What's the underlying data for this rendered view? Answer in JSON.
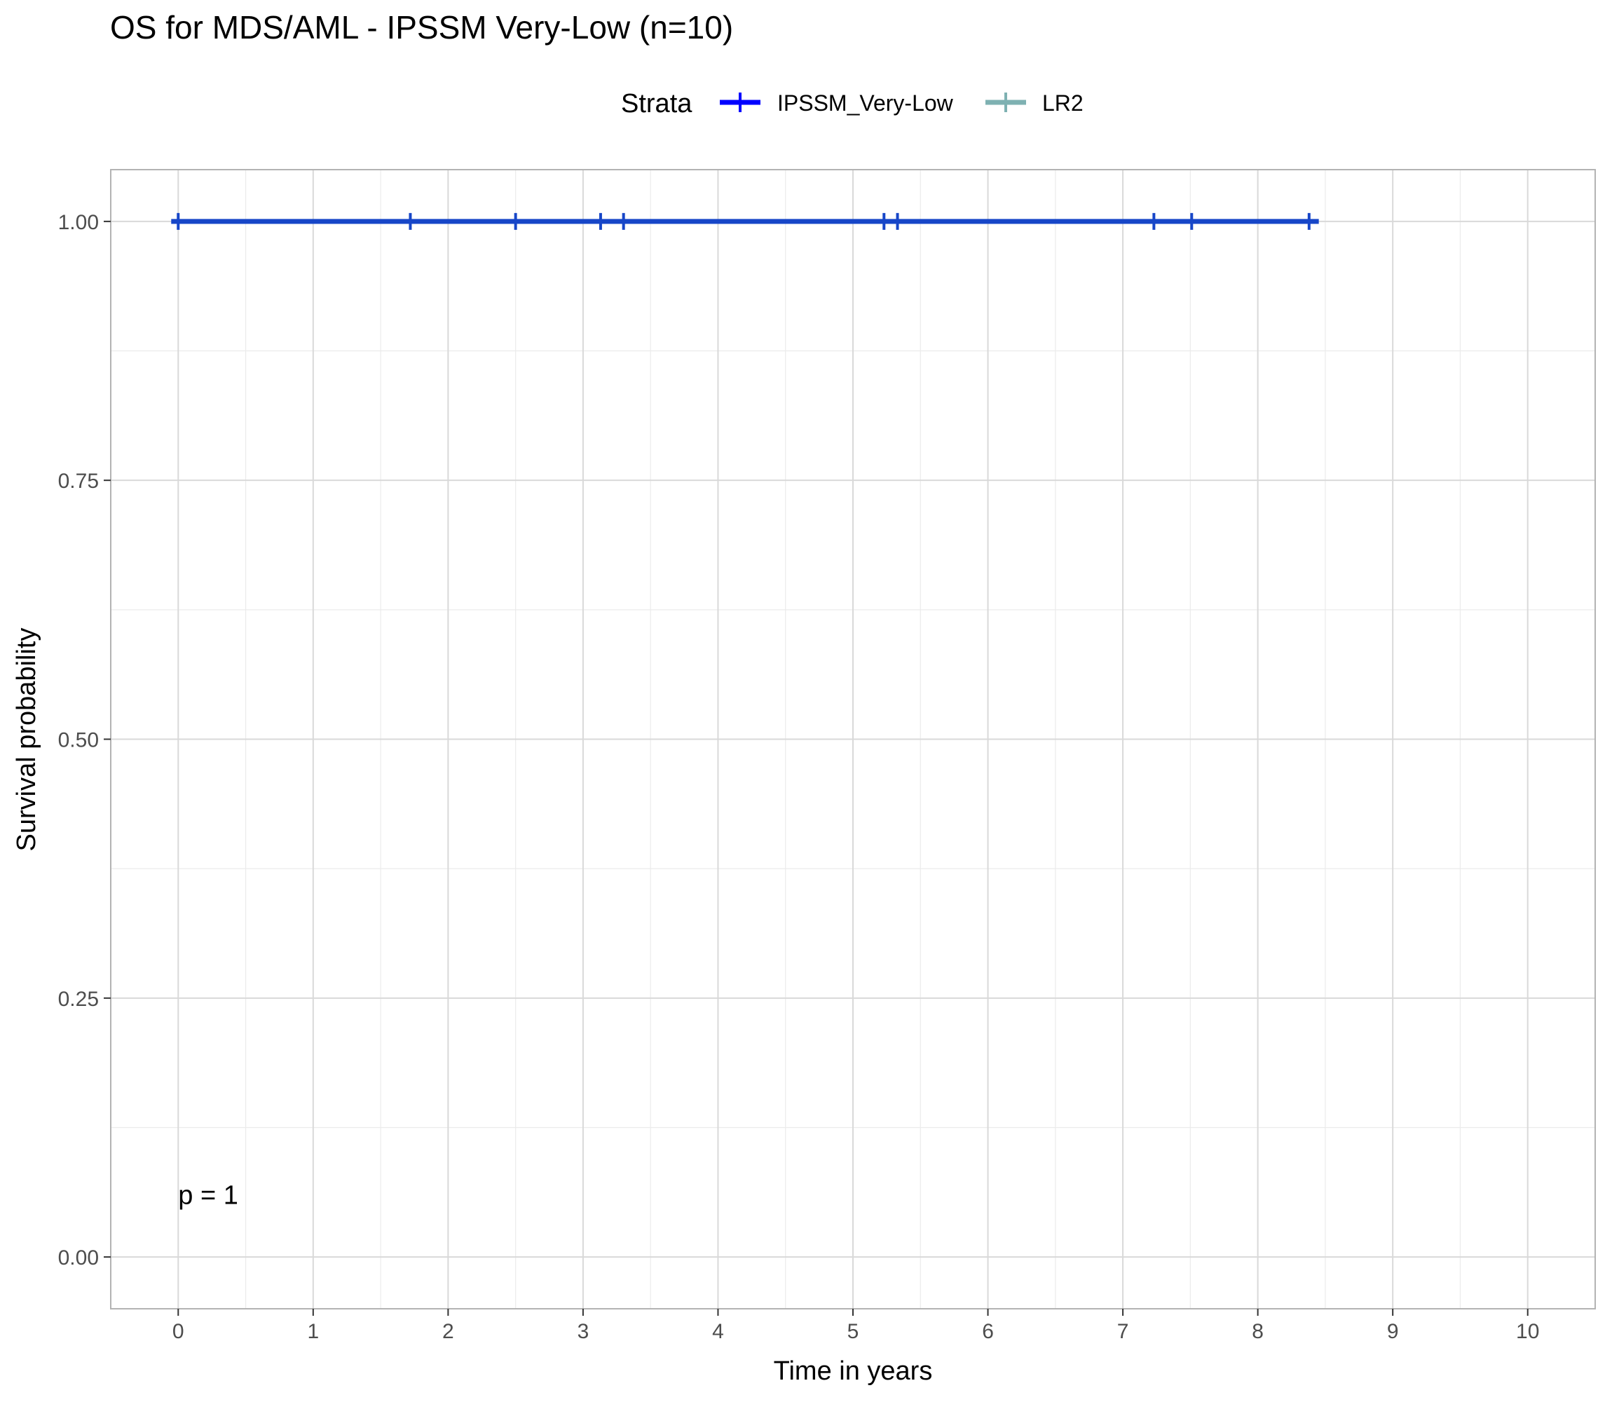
{
  "chart_data": {
    "type": "line",
    "title": "OS for MDS/AML - IPSSM Very-Low (n=10)",
    "xlabel": "Time in years",
    "ylabel": "Survival probability",
    "xlim": [
      -0.5,
      10.5
    ],
    "ylim": [
      -0.05,
      1.05
    ],
    "x_ticks": [
      0,
      1,
      2,
      3,
      4,
      5,
      6,
      7,
      8,
      9,
      10
    ],
    "y_ticks": [
      0.0,
      0.25,
      0.5,
      0.75,
      1.0
    ],
    "y_tick_labels": [
      "0.00",
      "0.25",
      "0.50",
      "0.75",
      "1.00"
    ],
    "grid": true,
    "legend": {
      "title": "Strata",
      "position": "top",
      "entries": [
        {
          "name": "IPSSM_Very-Low",
          "color": "#0000ff"
        },
        {
          "name": "LR2",
          "color": "#5f9ea0"
        }
      ]
    },
    "series": [
      {
        "name": "IPSSM_Very-Low",
        "color": "#1746c8",
        "step_x": [
          0,
          8.4
        ],
        "step_y": [
          1.0,
          1.0
        ],
        "censor_x": [
          0,
          1.72,
          2.5,
          3.13,
          3.3,
          5.23,
          5.33,
          7.23,
          7.51,
          8.38
        ],
        "censor_y": [
          1.0,
          1.0,
          1.0,
          1.0,
          1.0,
          1.0,
          1.0,
          1.0,
          1.0,
          1.0
        ]
      }
    ],
    "annotation": {
      "text": "p = 1",
      "x": 0,
      "y": 0.06
    }
  }
}
